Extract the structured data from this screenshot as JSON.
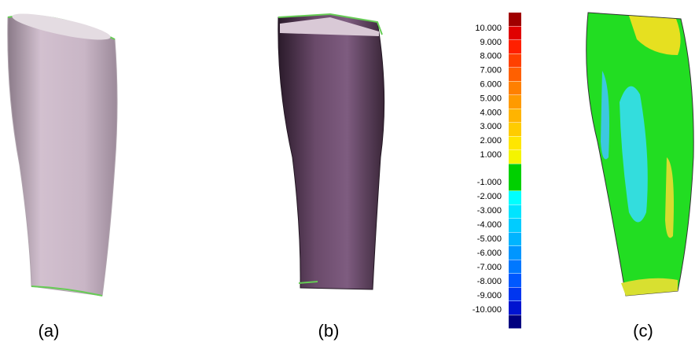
{
  "panels": [
    {
      "label": "(a)"
    },
    {
      "label": "(b)"
    },
    {
      "label": "(c)"
    }
  ],
  "color_scale": {
    "labels": [
      "10.000",
      "9.000",
      "8.000",
      "7.000",
      "6.000",
      "5.000",
      "4.000",
      "3.000",
      "2.000",
      "1.000",
      "-1.000",
      "-2.000",
      "-3.000",
      "-4.000",
      "-5.000",
      "-6.000",
      "-7.000",
      "-8.000",
      "-9.000",
      "-10.000"
    ]
  }
}
